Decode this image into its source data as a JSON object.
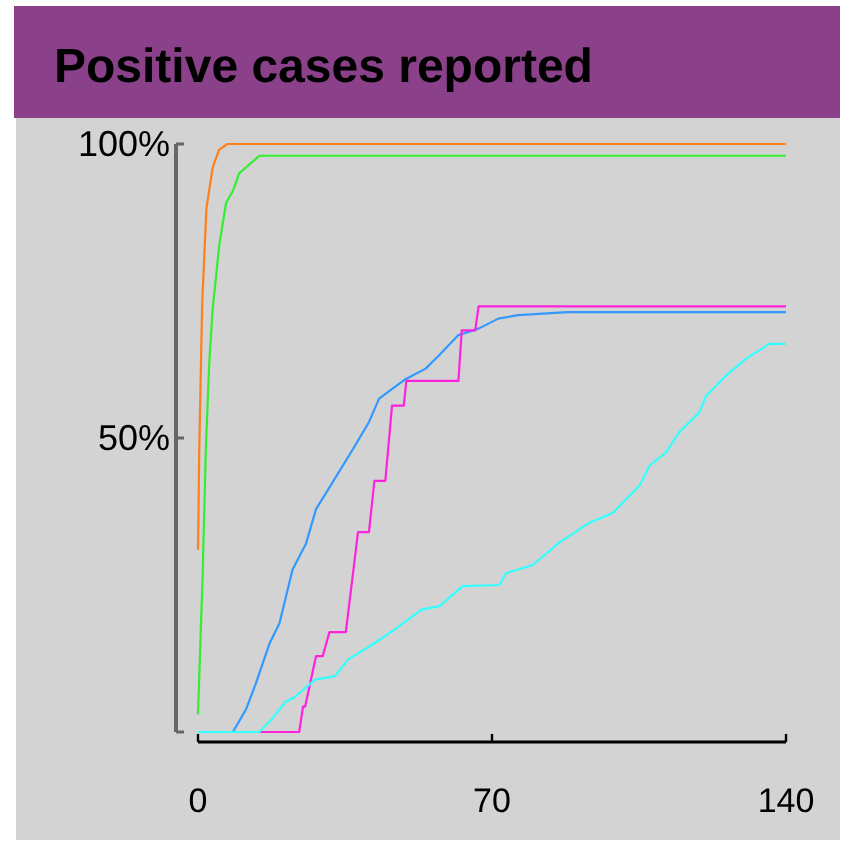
{
  "chart_data": {
    "type": "line",
    "title": "Positive cases reported",
    "xlim": [
      0,
      140
    ],
    "xticks": [
      0,
      70,
      140
    ],
    "ylim": [
      0,
      100
    ],
    "yticks": [
      {
        "value": 0,
        "label": null
      },
      {
        "value": 50,
        "label": "50%"
      },
      {
        "value": 100,
        "label": "100%"
      }
    ],
    "grid": false,
    "marker": "none",
    "line_style": "solid",
    "series": [
      {
        "color": "#ff7f1a",
        "x": [
          0,
          0.3,
          1,
          2,
          3.5,
          5,
          7,
          140
        ],
        "values": [
          31,
          48,
          73,
          89,
          96,
          99,
          100,
          100
        ]
      },
      {
        "color": "#33ee33",
        "x": [
          0,
          1.1,
          1.9,
          2.7,
          3.5,
          5.1,
          6.7,
          8.3,
          9.8,
          13,
          14.6,
          140
        ],
        "values": [
          3,
          26.6,
          49,
          63,
          72,
          83,
          90,
          92,
          95,
          97,
          98,
          98
        ]
      },
      {
        "color": "#3399ff",
        "x": [
          0,
          8.3,
          11.4,
          13.8,
          17,
          19.4,
          22.5,
          25.7,
          28.1,
          32,
          36.8,
          40.7,
          43.1,
          49.4,
          54.2,
          57.3,
          62,
          66.8,
          71.5,
          76.2,
          88,
          140
        ],
        "values": [
          0,
          0,
          3.8,
          8.3,
          15,
          18.5,
          27.6,
          32,
          37.9,
          42.4,
          48,
          52.7,
          56.7,
          60,
          61.8,
          64,
          67.5,
          68.6,
          70.3,
          70.9,
          71.4,
          71.4
        ]
      },
      {
        "color": "#ff22dd",
        "x": [
          0,
          24.1,
          25,
          25.5,
          28.1,
          29.7,
          31.3,
          35.2,
          38.1,
          40.7,
          42,
          44.6,
          46.2,
          49,
          49.6,
          62,
          62.8,
          66,
          66.8,
          140
        ],
        "values": [
          0,
          0,
          4.3,
          4.3,
          12.9,
          12.9,
          17,
          17,
          34,
          34,
          42.7,
          42.7,
          55.5,
          55.5,
          59.7,
          59.7,
          68.3,
          68.3,
          72.4,
          72.4
        ]
      },
      {
        "color": "#33ffff",
        "x": [
          0,
          14.6,
          17.8,
          20.8,
          23.1,
          27.9,
          32.6,
          35.7,
          42,
          46.8,
          53.2,
          57.5,
          63,
          71.8,
          73.3,
          79.7,
          86,
          93.2,
          98.8,
          105.1,
          107.5,
          111.4,
          114.6,
          119.4,
          121,
          125.7,
          130.5,
          136,
          140
        ],
        "values": [
          0,
          0,
          2.4,
          5.1,
          6,
          8.9,
          9.5,
          12.3,
          15.1,
          17.4,
          20.8,
          21.4,
          24.8,
          25,
          27,
          28.4,
          32.2,
          35.6,
          37.3,
          41.9,
          45.3,
          47.5,
          51,
          54.4,
          57.2,
          60.6,
          63.5,
          66,
          66
        ]
      }
    ]
  }
}
